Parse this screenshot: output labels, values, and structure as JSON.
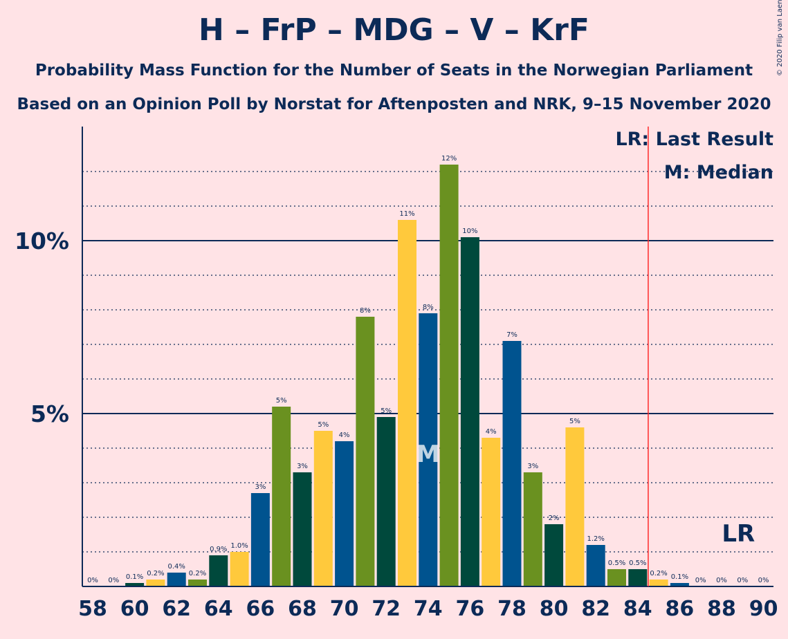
{
  "title": "H – FrP – MDG – V – KrF",
  "subtitle1": "Probability Mass Function for the Number of Seats in the Norwegian Parliament",
  "subtitle2": "Based on an Opinion Poll by Norstat for Aftenposten and NRK, 9–15 November 2020",
  "copyright": "© 2020 Filip van Laenen",
  "legend": {
    "last_result": "LR: Last Result",
    "median": "M: Median"
  },
  "markers": {
    "lr_label": "LR",
    "median_label": "M"
  },
  "colors": {
    "background": "#FFE3E6",
    "text": "#0C2A57",
    "lr_line": "#FF2A2A",
    "palette": [
      "#00538F",
      "#6A9120",
      "#00493C",
      "#FFC93C"
    ]
  },
  "chart_data": {
    "type": "bar",
    "xlabel": "",
    "ylabel": "",
    "ylim": [
      0,
      13.3
    ],
    "yticks": [
      5,
      10
    ],
    "ytick_labels": [
      "5%",
      "10%"
    ],
    "minor_gridlines": [
      1,
      2,
      3,
      4,
      6,
      7,
      8,
      9,
      11,
      12
    ],
    "x": [
      58,
      59,
      60,
      61,
      62,
      63,
      64,
      65,
      66,
      67,
      68,
      69,
      70,
      71,
      72,
      73,
      74,
      75,
      76,
      77,
      78,
      79,
      80,
      81,
      82,
      83,
      84,
      85,
      86,
      87,
      88,
      89,
      90
    ],
    "xtick_labels": [
      "58",
      "60",
      "62",
      "64",
      "66",
      "68",
      "70",
      "72",
      "74",
      "76",
      "78",
      "80",
      "82",
      "84",
      "86",
      "88",
      "90"
    ],
    "values": [
      0,
      0,
      0.1,
      0.2,
      0.4,
      0.2,
      0.9,
      1.0,
      2.7,
      5.2,
      3.3,
      4.5,
      4.2,
      7.8,
      4.9,
      10.6,
      7.9,
      12.2,
      10.1,
      4.3,
      7.1,
      3.3,
      1.8,
      4.6,
      1.2,
      0.5,
      0.5,
      0.2,
      0.1,
      0,
      0,
      0,
      0
    ],
    "labels": [
      "0%",
      "0%",
      "0.1%",
      "0.2%",
      "0.4%",
      "0.2%",
      "0.9%",
      "1.0%",
      "3%",
      "5%",
      "3%",
      "5%",
      "4%",
      "8%",
      "5%",
      "11%",
      "8%",
      "12%",
      "10%",
      "4%",
      "7%",
      "3%",
      "2%",
      "5%",
      "1.2%",
      "0.5%",
      "0.5%",
      "0.2%",
      "0.1%",
      "0%",
      "0%",
      "0%",
      "0%"
    ],
    "last_result": 85,
    "median": 74
  }
}
